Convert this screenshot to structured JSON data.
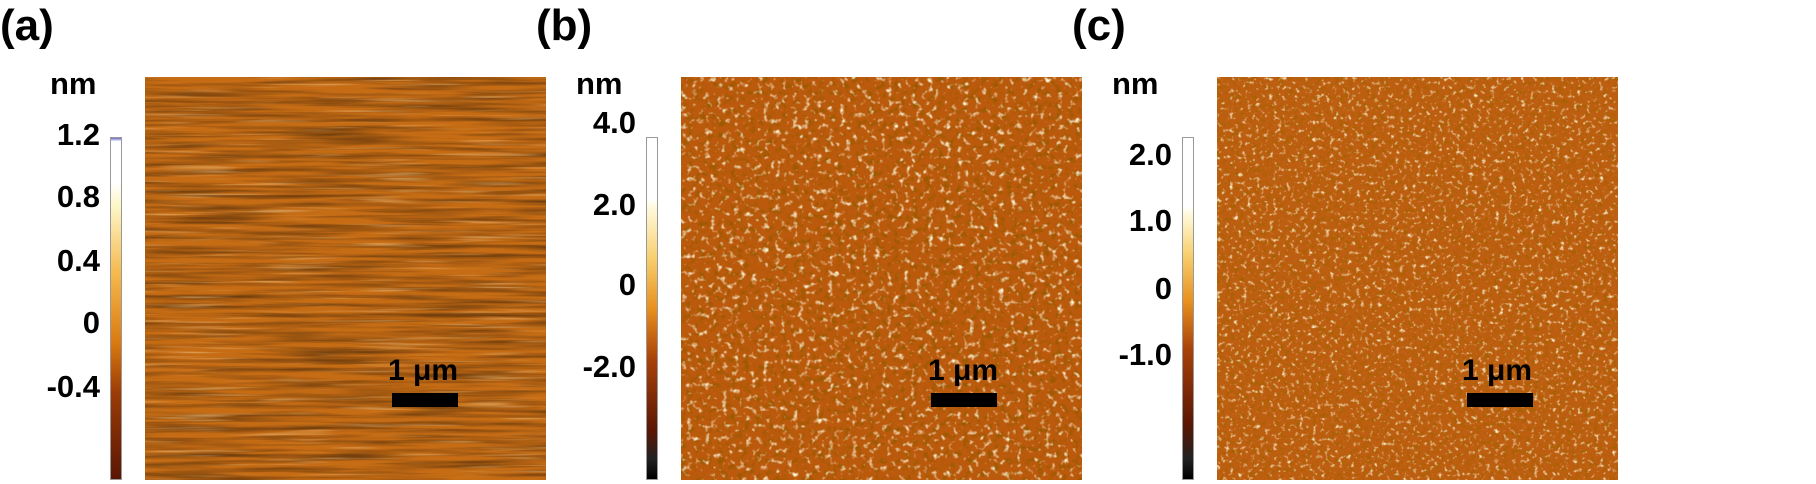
{
  "panels": [
    {
      "label": "(a)",
      "unit": "nm",
      "ticks": [
        "1.2",
        "0.8",
        "0.4",
        "0",
        "-0.4"
      ],
      "scale_bar": "1 μm",
      "texture": "streaky",
      "colors": {
        "base": "#c26a14",
        "dark": "#8a3e05",
        "light": "#e7a340"
      }
    },
    {
      "label": "(b)",
      "unit": "nm",
      "ticks": [
        "4.0",
        "2.0",
        "0",
        "-2.0"
      ],
      "scale_bar": "1 μm",
      "texture": "grainy",
      "colors": {
        "base": "#b5560b",
        "dark": "#5a1e02",
        "light": "#fbe6a8"
      }
    },
    {
      "label": "(c)",
      "unit": "nm",
      "ticks": [
        "2.0",
        "1.0",
        "0",
        "-1.0"
      ],
      "scale_bar": "1 μm",
      "texture": "grainy-fine",
      "colors": {
        "base": "#b8590d",
        "dark": "#6a2703",
        "light": "#f8d98c"
      }
    }
  ]
}
